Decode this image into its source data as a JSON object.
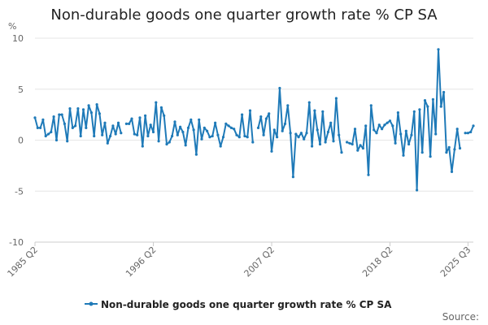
{
  "chart_data": {
    "type": "line",
    "title": "Non-durable goods one quarter growth rate % CP SA",
    "ylabel": "%",
    "ylim": [
      -10,
      10
    ],
    "yticks": [
      -10,
      -5,
      0,
      5,
      10
    ],
    "xticks": [
      "1985 Q2",
      "1996 Q2",
      "2007 Q2",
      "2018 Q2",
      "2025 Q3"
    ],
    "grid": true,
    "legend_position": "bottom",
    "colors": {
      "series": "#1f7ab8",
      "grid": "#e6e6e6",
      "axis": "#cccccc"
    },
    "source_label": "Source:",
    "series": [
      {
        "name": "Non-durable goods one quarter growth rate % CP SA",
        "start": "1985 Q2",
        "values": [
          2.2,
          1.2,
          1.2,
          2.0,
          0.4,
          0.6,
          0.8,
          2.3,
          0.0,
          2.5,
          2.5,
          1.6,
          -0.1,
          3.1,
          1.2,
          1.4,
          3.1,
          0.4,
          3.0,
          1.2,
          3.4,
          2.7,
          0.4,
          3.5,
          2.6,
          0.5,
          1.7,
          -0.3,
          0.4,
          1.4,
          0.6,
          1.7,
          0.7,
          null,
          1.6,
          1.6,
          2.1,
          0.6,
          0.5,
          2.2,
          -0.6,
          2.4,
          0.4,
          1.5,
          0.8,
          3.7,
          -0.1,
          3.2,
          2.4,
          -0.4,
          -0.2,
          0.4,
          1.8,
          0.5,
          1.3,
          0.8,
          -0.5,
          1.2,
          2.0,
          1.0,
          -1.4,
          2.0,
          0.1,
          1.2,
          0.9,
          0.3,
          0.4,
          1.7,
          0.5,
          -0.6,
          0.3,
          1.6,
          1.4,
          1.2,
          1.1,
          0.5,
          0.3,
          2.5,
          0.4,
          0.3,
          2.9,
          -0.2,
          null,
          1.2,
          2.3,
          0.5,
          2.1,
          2.6,
          -1.1,
          1.0,
          0.3,
          5.1,
          0.9,
          1.6,
          3.4,
          0.7,
          -3.6,
          0.6,
          0.3,
          0.7,
          0.1,
          0.7,
          3.7,
          -0.6,
          2.9,
          1.0,
          -0.4,
          2.8,
          -0.2,
          0.8,
          1.7,
          -0.1,
          4.1,
          0.5,
          -1.2,
          null,
          -0.2,
          -0.3,
          -0.4,
          1.1,
          -1.0,
          -0.5,
          -0.8,
          1.4,
          -3.4,
          3.4,
          1.0,
          0.7,
          1.5,
          1.1,
          1.5,
          1.7,
          1.9,
          1.4,
          -0.3,
          2.7,
          0.6,
          -1.5,
          0.9,
          -0.4,
          0.5,
          2.8,
          -4.9,
          3.0,
          -1.2,
          3.9,
          3.3,
          -1.6,
          4.0,
          0.6,
          8.9,
          3.3,
          4.7,
          -1.2,
          -0.7,
          -3.1,
          -0.9,
          1.1,
          -0.8,
          null,
          0.7,
          0.7,
          0.8,
          1.4
        ]
      }
    ]
  }
}
